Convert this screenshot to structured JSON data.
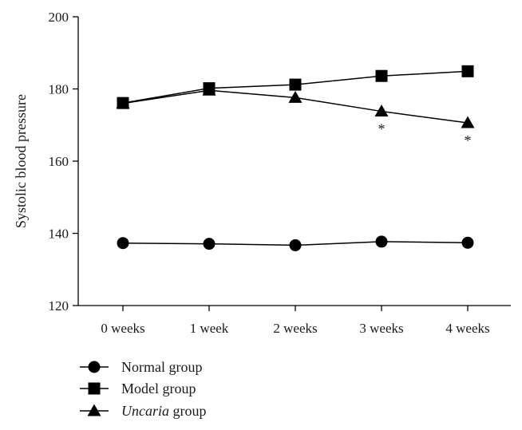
{
  "chart_data": {
    "type": "line",
    "title": "",
    "xlabel": "",
    "ylabel": "Systolic blood pressure",
    "categories": [
      "0 weeks",
      "1 week",
      "2 weeks",
      "3 weeks",
      "4 weeks"
    ],
    "ylim": [
      120,
      200
    ],
    "yticks": [
      120,
      140,
      160,
      180,
      200
    ],
    "grid": false,
    "legend_position": "bottom-left",
    "series": [
      {
        "name": "Normal group",
        "name_italic_part": "",
        "name_rest": "Normal group",
        "marker": "circle",
        "color": "#000000",
        "values": [
          137.3,
          137.1,
          136.7,
          137.7,
          137.4
        ]
      },
      {
        "name": "Model group",
        "name_italic_part": "",
        "name_rest": "Model group",
        "marker": "square",
        "color": "#000000",
        "values": [
          176.1,
          180.2,
          181.2,
          183.6,
          184.9
        ]
      },
      {
        "name": "Uncaria group",
        "name_italic_part": "Uncaria",
        "name_rest": " group",
        "marker": "triangle",
        "color": "#000000",
        "values": [
          176.0,
          179.6,
          177.6,
          173.8,
          170.6
        ]
      }
    ],
    "annotations": [
      {
        "text": "*",
        "category": "3 weeks",
        "series": "Uncaria group"
      },
      {
        "text": "*",
        "category": "4 weeks",
        "series": "Uncaria group"
      }
    ]
  }
}
